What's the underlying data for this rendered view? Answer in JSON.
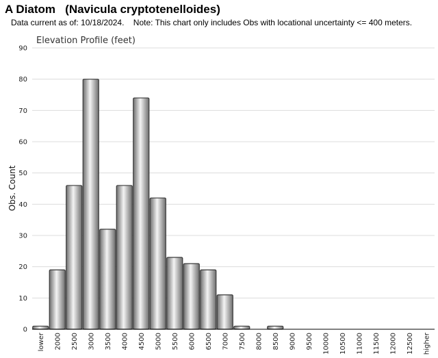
{
  "header": {
    "title": "A Diatom   (Navicula cryptotenelloides)",
    "subtitle": "Data current as of: 10/18/2024.    Note: This chart only includes Obs with locational uncertainty <= 400 meters."
  },
  "colors": {
    "bar_dark": "#6e6e6e",
    "bar_light": "#f4f4f4",
    "bar_stroke": "#3a3a3a",
    "grid": "#dcdcdc",
    "axis": "#000000"
  },
  "chart_data": {
    "type": "bar",
    "title": "Elevation Profile (feet)",
    "xlabel": "",
    "ylabel": "Obs. Count",
    "ylim": [
      0,
      90
    ],
    "yticks": [
      0,
      10,
      20,
      30,
      40,
      50,
      60,
      70,
      80,
      90
    ],
    "grid": true,
    "categories": [
      "lower",
      "2000",
      "2500",
      "3000",
      "3500",
      "4000",
      "4500",
      "5000",
      "5500",
      "6000",
      "6500",
      "7000",
      "7500",
      "8000",
      "8500",
      "9000",
      "9500",
      "10000",
      "10500",
      "11000",
      "11500",
      "12000",
      "12500",
      "higher"
    ],
    "values": [
      1,
      19,
      46,
      80,
      32,
      46,
      74,
      42,
      23,
      21,
      19,
      11,
      1,
      0,
      1,
      0,
      0,
      0,
      0,
      0,
      0,
      0,
      0,
      0
    ]
  }
}
